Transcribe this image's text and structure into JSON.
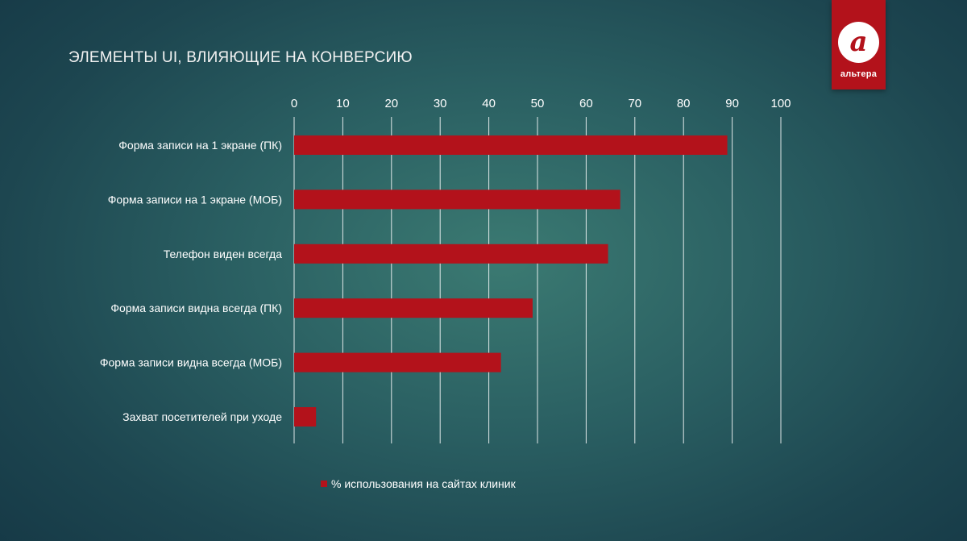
{
  "title": "ЭЛЕМЕНТЫ UI, ВЛИЯЮЩИЕ НА КОНВЕРСИЮ",
  "logo": {
    "letter": "а",
    "text": "альтера"
  },
  "colors": {
    "bar": "#b3121b",
    "grid": "#ffffff",
    "logo_bg": "#b3121b"
  },
  "chart_data": {
    "type": "bar",
    "orientation": "horizontal",
    "categories": [
      "Форма записи на 1 экране (ПК)",
      "Форма записи на 1 экране (МОБ)",
      "Телефон виден всегда",
      "Форма записи видна всегда (ПК)",
      "Форма записи видна всегда (МОБ)",
      "Захват посетителей при уходе"
    ],
    "series": [
      {
        "name": "% использования на сайтах клиник",
        "values": [
          89,
          67,
          64.5,
          49,
          42.5,
          4.5
        ]
      }
    ],
    "xlim": [
      0,
      100
    ],
    "x_ticks": [
      0,
      10,
      20,
      30,
      40,
      50,
      60,
      70,
      80,
      90,
      100
    ],
    "x_axis_position": "top",
    "grid": true,
    "legend_position": "bottom"
  }
}
